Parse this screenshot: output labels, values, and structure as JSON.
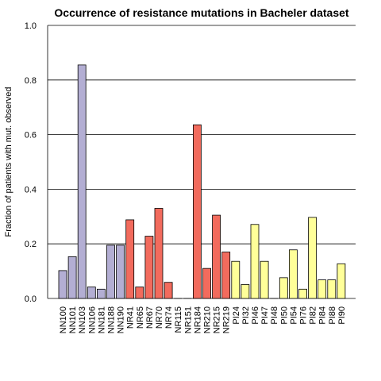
{
  "chart_data": {
    "type": "bar",
    "title": "Occurrence of resistance mutations in Bacheler dataset",
    "xlabel": "",
    "ylabel": "Fraction of patients with mut. observed",
    "ylim": [
      0,
      1.0
    ],
    "yticks": [
      "0.0",
      "0.2",
      "0.4",
      "0.6",
      "0.8",
      "1.0"
    ],
    "grid": "horizontal",
    "categories": [
      "NN100",
      "NN101",
      "NN103",
      "NN106",
      "NN181",
      "NN188",
      "NN190",
      "NR41",
      "NR65",
      "NR67",
      "NR70",
      "NR74",
      "NR115",
      "NR151",
      "NR184",
      "NR210",
      "NR215",
      "NR219",
      "PI24",
      "PI32",
      "PI46",
      "PI47",
      "PI48",
      "PI50",
      "PI54",
      "PI76",
      "PI82",
      "PI84",
      "PI88",
      "PI90"
    ],
    "values": [
      0.102,
      0.153,
      0.855,
      0.042,
      0.034,
      0.195,
      0.195,
      0.288,
      0.042,
      0.228,
      0.33,
      0.059,
      0.0,
      0.0,
      0.636,
      0.11,
      0.305,
      0.17,
      0.136,
      0.051,
      0.271,
      0.136,
      0.0,
      0.076,
      0.178,
      0.034,
      0.297,
      0.068,
      0.068,
      0.127
    ],
    "groups": [
      "NN",
      "NN",
      "NN",
      "NN",
      "NN",
      "NN",
      "NN",
      "NR",
      "NR",
      "NR",
      "NR",
      "NR",
      "NR",
      "NR",
      "NR",
      "NR",
      "NR",
      "NR",
      "PI",
      "PI",
      "PI",
      "PI",
      "PI",
      "PI",
      "PI",
      "PI",
      "PI",
      "PI",
      "PI",
      "PI"
    ],
    "colors": {
      "NN": "#b3aed3",
      "NR": "#f26b5d",
      "PI": "#ffff99",
      "stroke": "#000000",
      "grid": "#000000"
    }
  }
}
